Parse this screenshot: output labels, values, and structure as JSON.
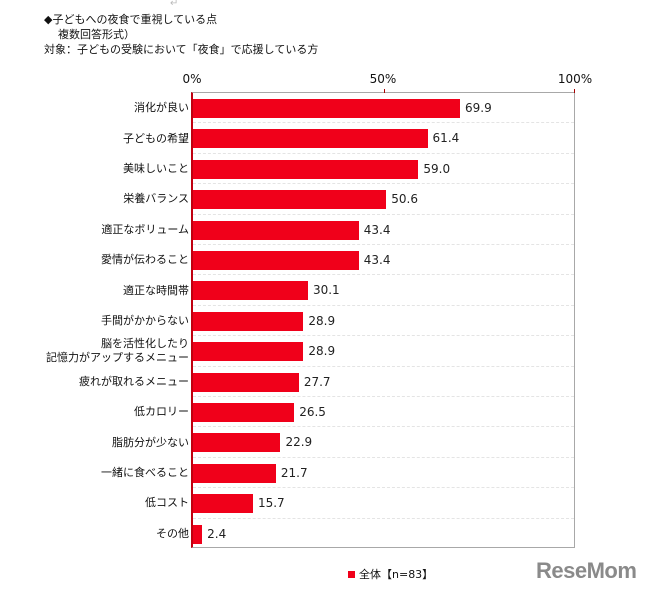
{
  "title": {
    "line1": "◆子どもへの夜食で重視している点",
    "line2": "複数回答形式）",
    "line3": "対象：子どもの受験において「夜食」で応援している方"
  },
  "axis": {
    "ticks": [
      "0%",
      "50%",
      "100%"
    ]
  },
  "legend": {
    "label": "全体【n=83】",
    "color": "#f0001a"
  },
  "logo": {
    "text": "ReseMom"
  },
  "chart_data": {
    "type": "bar",
    "orientation": "horizontal",
    "title": "子どもへの夜食で重視している点（複数回答形式）",
    "subtitle": "対象：子どもの受験において「夜食」で応援している方",
    "xlabel": "",
    "ylabel": "",
    "xlim": [
      0,
      100
    ],
    "x_ticks": [
      "0%",
      "50%",
      "100%"
    ],
    "grid": true,
    "legend_position": "bottom",
    "categories": [
      "消化が良い",
      "子どもの希望",
      "美味しいこと",
      "栄養バランス",
      "適正なボリューム",
      "愛情が伝わること",
      "適正な時間帯",
      "手間がかからない",
      "脳を活性化したり記憶力がアップするメニュー",
      "疲れが取れるメニュー",
      "低カロリー",
      "脂肪分が少ない",
      "一緒に食べること",
      "低コスト",
      "その他"
    ],
    "series": [
      {
        "name": "全体【n=83】",
        "color": "#f0001a",
        "values": [
          69.9,
          61.4,
          59.0,
          50.6,
          43.4,
          43.4,
          30.1,
          28.9,
          28.9,
          27.7,
          26.5,
          22.9,
          21.7,
          15.7,
          2.4
        ]
      }
    ],
    "value_labels": [
      "69.9",
      "61.4",
      "59.0",
      "50.6",
      "43.4",
      "43.4",
      "30.1",
      "28.9",
      "28.9",
      "27.7",
      "26.5",
      "22.9",
      "21.7",
      "15.7",
      "2.4"
    ],
    "category_labels": [
      [
        "消化が良い"
      ],
      [
        "子どもの希望"
      ],
      [
        "美味しいこと"
      ],
      [
        "栄養バランス"
      ],
      [
        "適正なボリューム"
      ],
      [
        "愛情が伝わること"
      ],
      [
        "適正な時間帯"
      ],
      [
        "手間がかからない"
      ],
      [
        "脳を活性化したり",
        "記憶力がアップするメニュー"
      ],
      [
        "疲れが取れるメニュー"
      ],
      [
        "低カロリー"
      ],
      [
        "脂肪分が少ない"
      ],
      [
        "一緒に食べること"
      ],
      [
        "低コスト"
      ],
      [
        "その他"
      ]
    ]
  }
}
